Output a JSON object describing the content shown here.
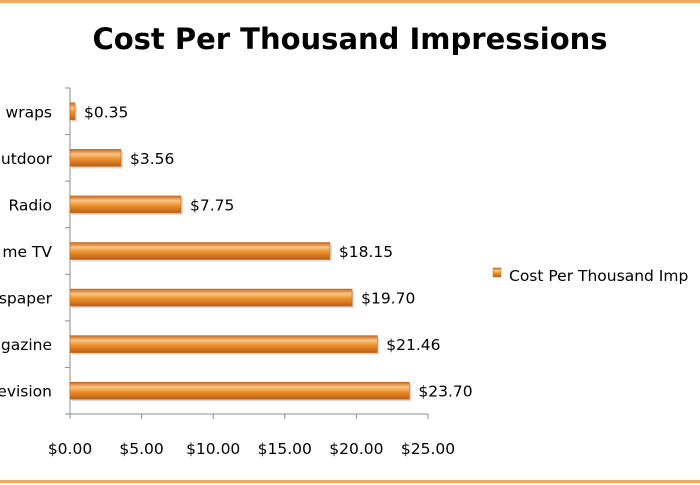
{
  "chart_data": {
    "type": "bar",
    "orientation": "horizontal",
    "title": "Cost Per Thousand Impressions",
    "categories": [
      "Television",
      "Magazine",
      "Newspaper",
      "Prime TV",
      "Radio",
      "Outdoor",
      "Wraps"
    ],
    "category_labels_visible": [
      "evision",
      "gazine",
      "spaper",
      "me TV",
      "Radio",
      "utdoor",
      "wraps"
    ],
    "series": [
      {
        "name": "Cost Per Thousand Impressions",
        "values": [
          23.7,
          21.46,
          19.7,
          18.15,
          7.75,
          3.56,
          0.35
        ],
        "data_labels": [
          "$23.70",
          "$21.46",
          "$19.70",
          "$18.15",
          "$7.75",
          "$3.56",
          "$0.35"
        ]
      }
    ],
    "xlim": [
      0,
      25
    ],
    "x_ticks": [
      0,
      5,
      10,
      15,
      20,
      25
    ],
    "x_tick_labels": [
      "$0.00",
      "$5.00",
      "$10.00",
      "$15.00",
      "$20.00",
      "$25.00"
    ],
    "legend_label_visible": "Cost Per Thousand Imp",
    "legend_position": "right",
    "grid": false,
    "colors": {
      "bar": "#f0922b",
      "bar_light": "#f9c58a",
      "bar_dark": "#c8671a",
      "frame": "#f2a65e",
      "axis": "#8c8c8c"
    }
  }
}
